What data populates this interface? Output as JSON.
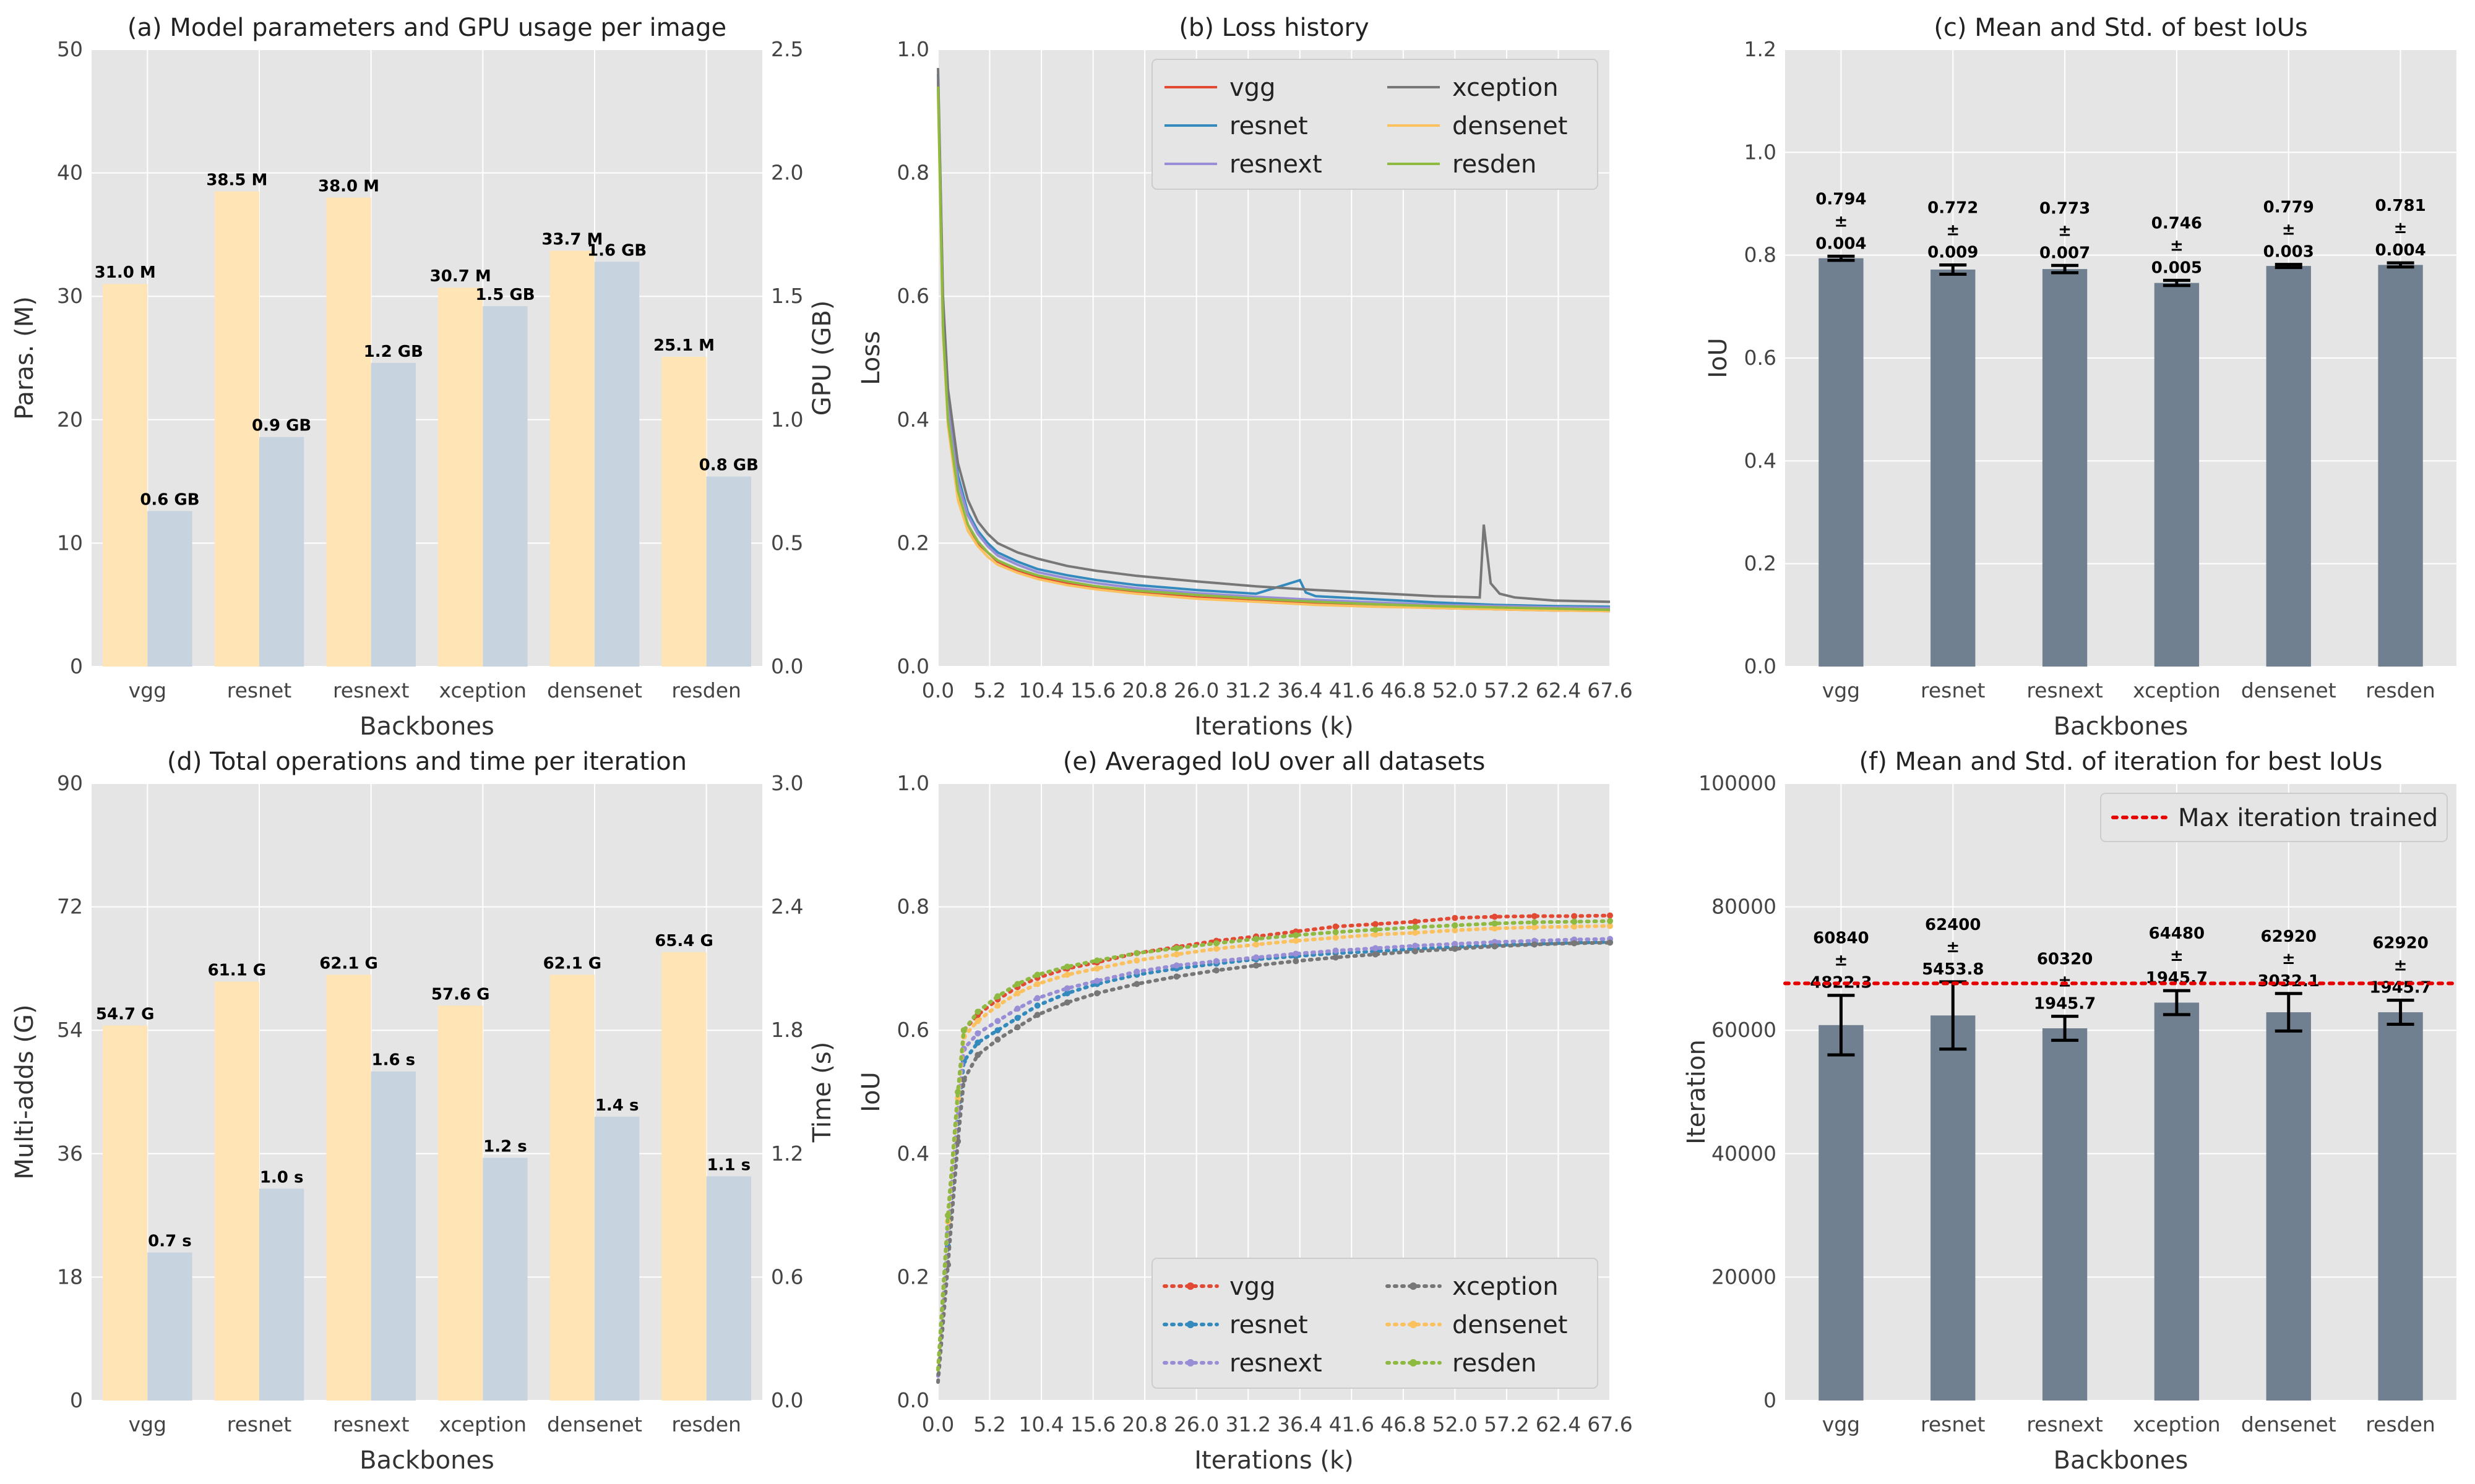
{
  "colors": {
    "panel_bg": "#e5e5e5",
    "grid": "#ffffff",
    "bar_left": "#ffe4b5",
    "bar_right": "#c8d3e0",
    "bar_iou": "#708090",
    "max_line": "#e60000",
    "series": {
      "vgg": "#e24a33",
      "resnet": "#348abd",
      "resnext": "#988ed5",
      "xception": "#777777",
      "densenet": "#fbc15e",
      "resden": "#8eba42"
    }
  },
  "chart_data": [
    {
      "id": "a",
      "type": "bar",
      "title": "(a) Model parameters and GPU usage per image",
      "xlabel": "Backbones",
      "ylabel": "Paras. (M)",
      "ylabel_right": "GPU (GB)",
      "categories": [
        "vgg",
        "resnet",
        "resnext",
        "xception",
        "densenet",
        "resden"
      ],
      "ylim": [
        0,
        50
      ],
      "yticks": [
        "0",
        "10",
        "20",
        "30",
        "40",
        "50"
      ],
      "ylim_right": [
        0,
        2.5
      ],
      "yticks_right": [
        "0.0",
        "0.5",
        "1.0",
        "1.5",
        "2.0",
        "2.5"
      ],
      "series": [
        {
          "name": "Paras.",
          "axis": "left",
          "values": [
            31.0,
            38.5,
            38.0,
            30.7,
            33.7,
            25.1
          ],
          "labels": [
            "31.0 M",
            "38.5 M",
            "38.0 M",
            "30.7 M",
            "33.7 M",
            "25.1 M"
          ]
        },
        {
          "name": "GPU",
          "axis": "right",
          "values": [
            0.63,
            0.93,
            1.23,
            1.46,
            1.64,
            0.77
          ],
          "labels": [
            "0.6 GB",
            "0.9 GB",
            "1.2 GB",
            "1.5 GB",
            "1.6 GB",
            "0.8 GB"
          ]
        }
      ]
    },
    {
      "id": "b",
      "type": "line",
      "title": "(b) Loss history",
      "xlabel": "Iterations (k)",
      "ylabel": "Loss",
      "xlim": [
        0,
        67.6
      ],
      "xticks": [
        "0.0",
        "5.2",
        "10.4",
        "15.6",
        "20.8",
        "26.0",
        "31.2",
        "36.4",
        "41.6",
        "46.8",
        "52.0",
        "57.2",
        "62.4",
        "67.6"
      ],
      "ylim": [
        0,
        1.0
      ],
      "yticks": [
        "0.0",
        "0.2",
        "0.4",
        "0.6",
        "0.8",
        "1.0"
      ],
      "legend": "top-right",
      "series": [
        {
          "name": "vgg",
          "x": [
            0,
            0.5,
            1,
            2,
            3,
            4,
            5,
            6,
            8,
            10,
            13,
            16,
            20,
            26,
            32,
            38,
            44,
            50,
            56,
            62,
            67.6
          ],
          "values": [
            0.95,
            0.55,
            0.4,
            0.28,
            0.23,
            0.2,
            0.185,
            0.17,
            0.155,
            0.145,
            0.135,
            0.127,
            0.12,
            0.112,
            0.107,
            0.102,
            0.098,
            0.095,
            0.093,
            0.091,
            0.09
          ]
        },
        {
          "name": "resnet",
          "x": [
            0,
            0.5,
            1,
            2,
            3,
            4,
            5,
            6,
            8,
            10,
            13,
            16,
            20,
            26,
            32,
            36.4,
            37,
            38,
            44,
            50,
            56,
            62,
            67.6
          ],
          "values": [
            0.96,
            0.58,
            0.43,
            0.31,
            0.25,
            0.22,
            0.2,
            0.185,
            0.17,
            0.158,
            0.148,
            0.14,
            0.132,
            0.124,
            0.118,
            0.14,
            0.12,
            0.114,
            0.109,
            0.104,
            0.1,
            0.098,
            0.097
          ]
        },
        {
          "name": "resnext",
          "x": [
            0,
            0.5,
            1,
            2,
            3,
            4,
            5,
            6,
            8,
            10,
            13,
            16,
            20,
            26,
            32,
            38,
            44,
            50,
            56,
            62,
            67.6
          ],
          "values": [
            0.95,
            0.56,
            0.42,
            0.3,
            0.245,
            0.215,
            0.195,
            0.18,
            0.165,
            0.153,
            0.143,
            0.135,
            0.127,
            0.119,
            0.113,
            0.108,
            0.104,
            0.1,
            0.098,
            0.096,
            0.095
          ]
        },
        {
          "name": "xception",
          "x": [
            0,
            0.5,
            1,
            2,
            3,
            4,
            5,
            6,
            8,
            10,
            13,
            16,
            20,
            26,
            32,
            38,
            44,
            50,
            54.5,
            54.9,
            55.6,
            56.5,
            58,
            62,
            67.6
          ],
          "values": [
            0.97,
            0.6,
            0.45,
            0.33,
            0.27,
            0.235,
            0.215,
            0.2,
            0.185,
            0.175,
            0.163,
            0.155,
            0.147,
            0.138,
            0.13,
            0.124,
            0.119,
            0.114,
            0.112,
            0.23,
            0.135,
            0.118,
            0.112,
            0.107,
            0.105
          ]
        },
        {
          "name": "densenet",
          "x": [
            0,
            0.5,
            1,
            2,
            3,
            4,
            5,
            6,
            8,
            10,
            13,
            16,
            20,
            26,
            32,
            38,
            44,
            50,
            56,
            62,
            67.6
          ],
          "values": [
            0.93,
            0.54,
            0.39,
            0.27,
            0.22,
            0.195,
            0.178,
            0.165,
            0.152,
            0.142,
            0.132,
            0.125,
            0.118,
            0.11,
            0.105,
            0.1,
            0.097,
            0.095,
            0.093,
            0.091,
            0.09
          ]
        },
        {
          "name": "resden",
          "x": [
            0,
            0.5,
            1,
            2,
            3,
            4,
            5,
            6,
            8,
            10,
            13,
            16,
            20,
            26,
            32,
            38,
            44,
            50,
            56,
            62,
            67.6
          ],
          "values": [
            0.94,
            0.55,
            0.4,
            0.285,
            0.23,
            0.203,
            0.185,
            0.172,
            0.158,
            0.148,
            0.138,
            0.13,
            0.123,
            0.116,
            0.11,
            0.105,
            0.101,
            0.098,
            0.096,
            0.094,
            0.092
          ]
        }
      ]
    },
    {
      "id": "c",
      "type": "bar",
      "title": "(c) Mean and Std. of best IoUs",
      "xlabel": "Backbones",
      "ylabel": "IoU",
      "categories": [
        "vgg",
        "resnet",
        "resnext",
        "xception",
        "densenet",
        "resden"
      ],
      "ylim": [
        0,
        1.2
      ],
      "yticks": [
        "0.0",
        "0.2",
        "0.4",
        "0.6",
        "0.8",
        "1.0",
        "1.2"
      ],
      "series": [
        {
          "name": "mean IoU",
          "values": [
            0.794,
            0.772,
            0.773,
            0.746,
            0.779,
            0.781
          ],
          "errors": [
            0.004,
            0.009,
            0.007,
            0.005,
            0.003,
            0.004
          ],
          "labels": [
            "0.794",
            "0.772",
            "0.773",
            "0.746",
            "0.779",
            "0.781"
          ],
          "error_labels": [
            "0.004",
            "0.009",
            "0.007",
            "0.005",
            "0.003",
            "0.004"
          ]
        }
      ],
      "pm_symbol": "±"
    },
    {
      "id": "d",
      "type": "bar",
      "title": "(d) Total operations and time per iteration",
      "xlabel": "Backbones",
      "ylabel": "Multi-adds (G)",
      "ylabel_right": "Time (s)",
      "categories": [
        "vgg",
        "resnet",
        "resnext",
        "xception",
        "densenet",
        "resden"
      ],
      "ylim": [
        0,
        90
      ],
      "yticks": [
        "0",
        "18",
        "36",
        "54",
        "72",
        "90"
      ],
      "ylim_right": [
        0,
        3.0
      ],
      "yticks_right": [
        "0.0",
        "0.6",
        "1.2",
        "1.8",
        "2.4",
        "3.0"
      ],
      "series": [
        {
          "name": "Multi-adds",
          "axis": "left",
          "values": [
            54.7,
            61.1,
            62.1,
            57.6,
            62.1,
            65.4
          ],
          "labels": [
            "54.7 G",
            "61.1 G",
            "62.1 G",
            "57.6 G",
            "62.1 G",
            "65.4 G"
          ]
        },
        {
          "name": "Time",
          "axis": "right",
          "values": [
            0.72,
            1.03,
            1.6,
            1.18,
            1.38,
            1.09
          ],
          "labels": [
            "0.7 s",
            "1.0 s",
            "1.6 s",
            "1.2 s",
            "1.4 s",
            "1.1 s"
          ]
        }
      ]
    },
    {
      "id": "e",
      "type": "line",
      "title": "(e) Averaged IoU over all datasets",
      "xlabel": "Iterations (k)",
      "ylabel": "IoU",
      "xlim": [
        0,
        67.6
      ],
      "xticks": [
        "0.0",
        "5.2",
        "10.4",
        "15.6",
        "20.8",
        "26.0",
        "31.2",
        "36.4",
        "41.6",
        "46.8",
        "52.0",
        "57.2",
        "62.4",
        "67.6"
      ],
      "ylim": [
        0,
        1.0
      ],
      "yticks": [
        "0.0",
        "0.2",
        "0.4",
        "0.6",
        "0.8",
        "1.0"
      ],
      "legend": "bottom-right",
      "series": [
        {
          "name": "vgg",
          "x": [
            0,
            1,
            2,
            2.6,
            4,
            6,
            8,
            10,
            13,
            16,
            20,
            24,
            28,
            32,
            36,
            40,
            44,
            48,
            52,
            56,
            60,
            64,
            67.6
          ],
          "values": [
            0.05,
            0.3,
            0.5,
            0.6,
            0.625,
            0.65,
            0.67,
            0.685,
            0.7,
            0.71,
            0.725,
            0.735,
            0.745,
            0.752,
            0.76,
            0.768,
            0.772,
            0.776,
            0.782,
            0.784,
            0.785,
            0.785,
            0.786
          ]
        },
        {
          "name": "resnet",
          "x": [
            0,
            1,
            2,
            2.6,
            4,
            6,
            8,
            10,
            13,
            16,
            20,
            24,
            28,
            32,
            36,
            40,
            44,
            48,
            52,
            56,
            60,
            64,
            67.6
          ],
          "values": [
            0.04,
            0.25,
            0.45,
            0.55,
            0.58,
            0.6,
            0.62,
            0.64,
            0.66,
            0.675,
            0.69,
            0.7,
            0.708,
            0.715,
            0.72,
            0.725,
            0.728,
            0.732,
            0.735,
            0.738,
            0.74,
            0.742,
            0.743
          ]
        },
        {
          "name": "resnext",
          "x": [
            0,
            1,
            2,
            2.6,
            4,
            6,
            8,
            10,
            13,
            16,
            20,
            24,
            28,
            32,
            36,
            40,
            44,
            48,
            52,
            56,
            60,
            64,
            67.6
          ],
          "values": [
            0.04,
            0.27,
            0.47,
            0.57,
            0.595,
            0.615,
            0.635,
            0.652,
            0.668,
            0.68,
            0.695,
            0.705,
            0.712,
            0.718,
            0.724,
            0.729,
            0.733,
            0.737,
            0.74,
            0.743,
            0.745,
            0.747,
            0.748
          ]
        },
        {
          "name": "xception",
          "x": [
            0,
            1,
            2,
            2.6,
            4,
            6,
            8,
            10,
            13,
            16,
            20,
            24,
            28,
            32,
            36,
            40,
            44,
            48,
            52,
            56,
            60,
            64,
            67.6
          ],
          "values": [
            0.03,
            0.22,
            0.42,
            0.52,
            0.56,
            0.585,
            0.605,
            0.625,
            0.645,
            0.66,
            0.675,
            0.687,
            0.697,
            0.705,
            0.712,
            0.718,
            0.723,
            0.728,
            0.732,
            0.736,
            0.739,
            0.741,
            0.742
          ]
        },
        {
          "name": "densenet",
          "x": [
            0,
            1,
            2,
            2.6,
            4,
            6,
            8,
            10,
            13,
            16,
            20,
            24,
            28,
            32,
            36,
            40,
            44,
            48,
            52,
            56,
            60,
            64,
            67.6
          ],
          "values": [
            0.05,
            0.29,
            0.49,
            0.59,
            0.615,
            0.64,
            0.66,
            0.675,
            0.69,
            0.7,
            0.713,
            0.723,
            0.732,
            0.739,
            0.745,
            0.75,
            0.755,
            0.758,
            0.762,
            0.765,
            0.767,
            0.768,
            0.769
          ]
        },
        {
          "name": "resden",
          "x": [
            0,
            1,
            2,
            2.6,
            4,
            6,
            8,
            10,
            13,
            16,
            20,
            24,
            28,
            32,
            36,
            40,
            44,
            48,
            52,
            56,
            60,
            64,
            67.6
          ],
          "values": [
            0.05,
            0.3,
            0.5,
            0.6,
            0.63,
            0.655,
            0.675,
            0.69,
            0.703,
            0.713,
            0.725,
            0.733,
            0.741,
            0.748,
            0.754,
            0.759,
            0.763,
            0.767,
            0.77,
            0.773,
            0.775,
            0.776,
            0.777
          ]
        }
      ]
    },
    {
      "id": "f",
      "type": "bar",
      "title": "(f) Mean and Std. of iteration for best IoUs",
      "xlabel": "Backbones",
      "ylabel": "Iteration",
      "categories": [
        "vgg",
        "resnet",
        "resnext",
        "xception",
        "densenet",
        "resden"
      ],
      "ylim": [
        0,
        100000
      ],
      "yticks": [
        "0",
        "20000",
        "40000",
        "60000",
        "80000",
        "100000"
      ],
      "series": [
        {
          "name": "mean iteration",
          "values": [
            60840,
            62400,
            60320,
            64480,
            62920,
            62920
          ],
          "errors": [
            4822.3,
            5453.8,
            1945.7,
            1945.7,
            3032.1,
            1945.7
          ],
          "labels": [
            "60840",
            "62400",
            "60320",
            "64480",
            "62920",
            "62920"
          ],
          "error_labels": [
            "4822.3",
            "5453.8",
            "1945.7",
            "1945.7",
            "3032.1",
            "1945.7"
          ]
        }
      ],
      "pm_symbol": "±",
      "hline": {
        "value": 67600,
        "label": "Max iteration trained"
      },
      "legend": "top-right"
    }
  ]
}
